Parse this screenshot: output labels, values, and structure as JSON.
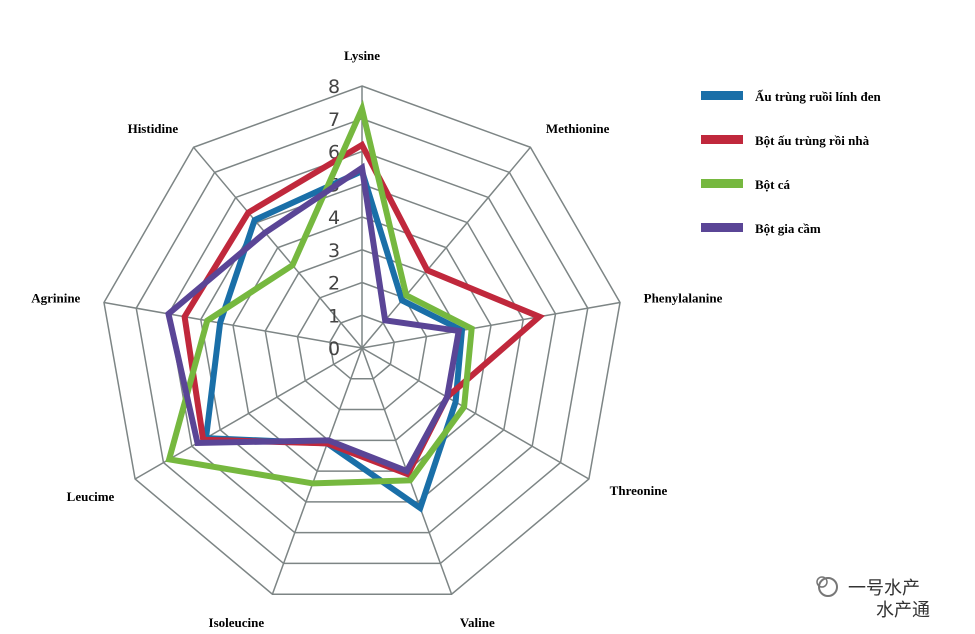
{
  "chart_data": {
    "type": "radar",
    "title": "",
    "categories": [
      "Lysine",
      "Methionine",
      "Phenylalanine",
      "Threonine",
      "Valine",
      "Isoleucine",
      "Leucime",
      "Agrinine",
      "Histidine"
    ],
    "rlim": [
      0,
      8
    ],
    "ticks": [
      "0",
      "1",
      "2",
      "3",
      "4",
      "5",
      "6",
      "7",
      "8"
    ],
    "grid": true,
    "legend_position": "right",
    "series": [
      {
        "name": "Ấu trùng ruồi lính đen",
        "color": "#1a6fa8",
        "values": [
          5.4,
          1.9,
          3.1,
          3.3,
          5.2,
          3.1,
          5.5,
          4.4,
          5.1
        ]
      },
      {
        "name": "Bột ấu trùng rồi nhà",
        "color": "#c0283c",
        "values": [
          6.2,
          3.1,
          5.5,
          3.0,
          4.1,
          3.1,
          5.6,
          5.5,
          5.4
        ]
      },
      {
        "name": "Bột cá",
        "color": "#76b83f",
        "values": [
          7.3,
          2.1,
          3.4,
          3.6,
          4.3,
          4.4,
          6.8,
          4.8,
          3.3
        ]
      },
      {
        "name": "Bột gia cầm",
        "color": "#5a4596",
        "values": [
          5.5,
          1.1,
          3.0,
          3.0,
          4.0,
          3.0,
          5.8,
          6.0,
          4.6
        ]
      }
    ]
  },
  "watermark": {
    "line1": "一号水产",
    "line2": "水产通"
  }
}
